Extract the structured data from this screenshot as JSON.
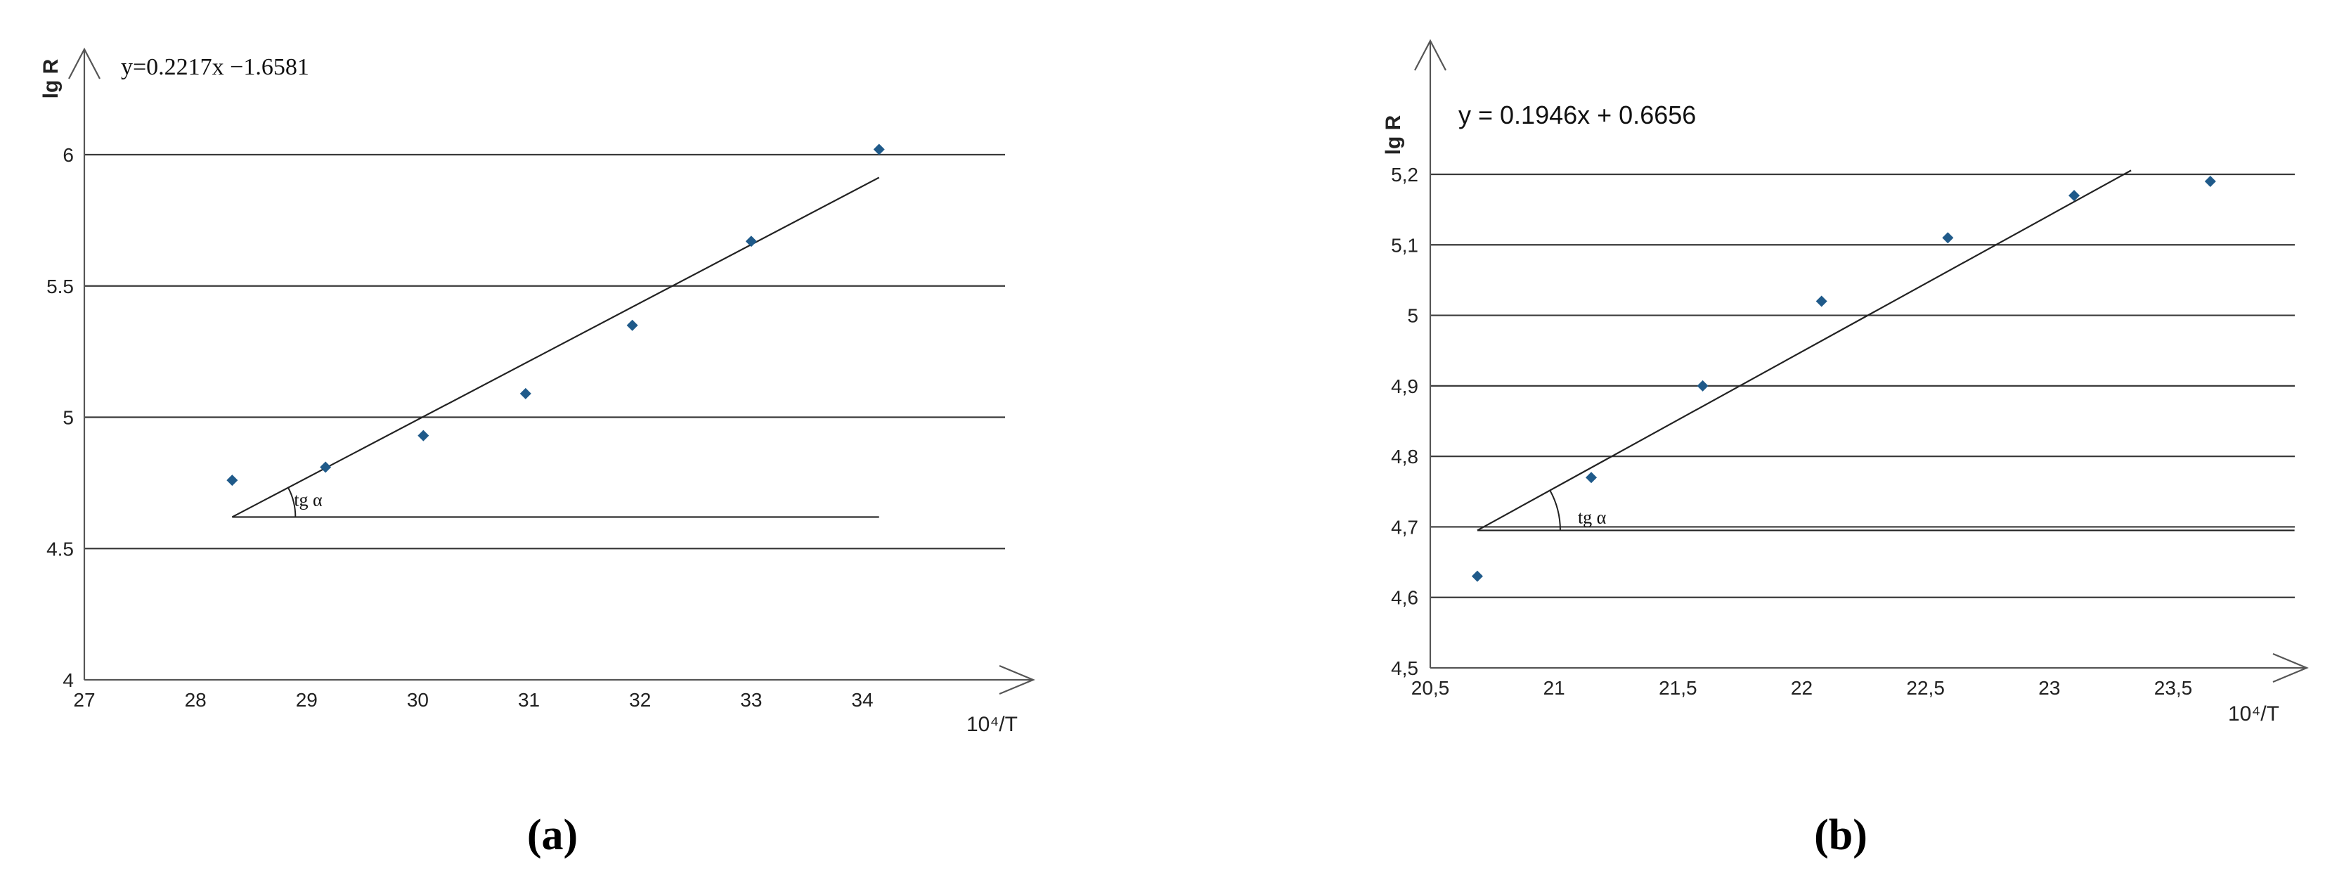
{
  "chart_data": [
    {
      "type": "scatter",
      "panel_label": "(a)",
      "equation": "y=0.2217x −1.6581",
      "ylabel": "lg R",
      "xlabel": "10⁴/T",
      "xticks": [
        "27",
        "28",
        "29",
        "30",
        "31",
        "32",
        "33",
        "34"
      ],
      "yticks": [
        "4",
        "4.5",
        "5",
        "5.5",
        "6"
      ],
      "xlim": [
        27,
        34.9
      ],
      "ylim": [
        4,
        6
      ],
      "grid": true,
      "angle_label": "tg α",
      "series": [
        {
          "x": [
            28.33,
            29.17,
            30.05,
            30.97,
            31.93,
            33.0,
            34.15
          ],
          "y": [
            4.76,
            4.81,
            4.93,
            5.09,
            5.35,
            5.67,
            6.02
          ]
        }
      ],
      "fit_line": {
        "slope": 0.2217,
        "intercept": -1.6581,
        "x_range": [
          28.33,
          34.15
        ]
      },
      "angle_baseline": {
        "y": 4.62,
        "x_range": [
          28.33,
          34.15
        ]
      }
    },
    {
      "type": "scatter",
      "panel_label": "(b)",
      "equation": "y = 0.1946x + 0.6656",
      "ylabel": "lg R",
      "xlabel": "10⁴/T",
      "xticks": [
        "20,5",
        "21",
        "21,5",
        "22",
        "22,5",
        "23",
        "23,5"
      ],
      "yticks": [
        "4,5",
        "4,6",
        "4,7",
        "4,8",
        "4,9",
        "5",
        "5,1",
        "5,2"
      ],
      "xlim": [
        20.5,
        24.1
      ],
      "ylim": [
        4.5,
        5.2
      ],
      "grid": true,
      "angle_label": "tg α",
      "series": [
        {
          "x": [
            20.69,
            21.15,
            21.6,
            22.08,
            22.59,
            23.1,
            23.65
          ],
          "y": [
            4.63,
            4.77,
            4.9,
            5.02,
            5.11,
            5.17,
            5.19
          ]
        }
      ],
      "fit_line": {
        "slope": 0.1946,
        "intercept": 0.6656,
        "x_range": [
          20.69,
          23.33
        ]
      },
      "angle_baseline": {
        "y": 4.695,
        "x_range": [
          20.69,
          23.99
        ]
      }
    }
  ]
}
